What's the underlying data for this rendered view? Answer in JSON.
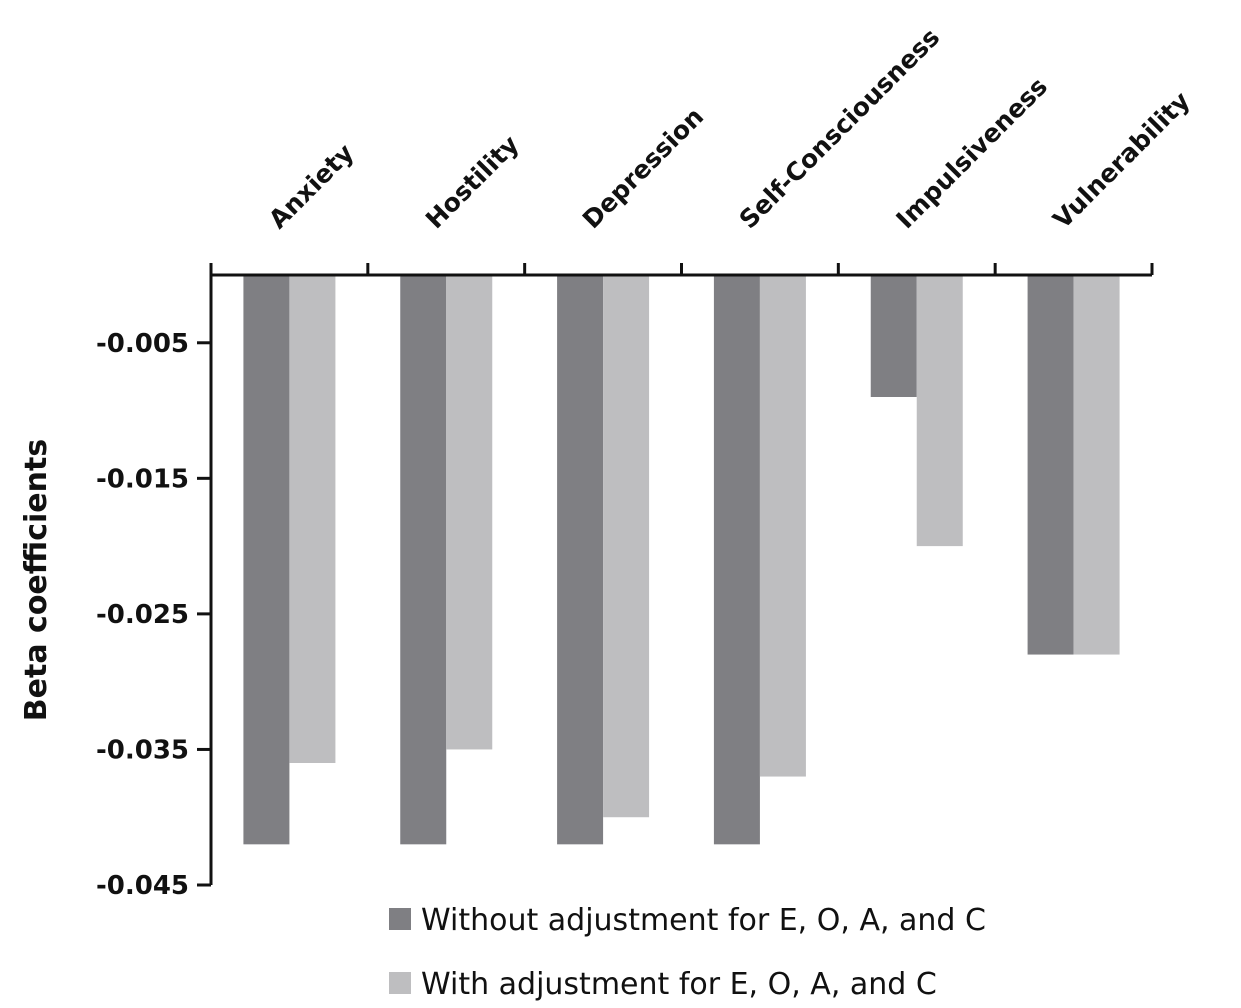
{
  "chart_data": {
    "type": "bar",
    "title": "",
    "xlabel": "",
    "ylabel": "Beta coefficients",
    "categories": [
      "Anxiety",
      "Hostility",
      "Depression",
      "Self-Consciousness",
      "Impulsiveness",
      "Vulnerability"
    ],
    "series": [
      {
        "name": "Without adjustment for E, O, A, and C",
        "color": "#7f7f83",
        "values": [
          -0.042,
          -0.042,
          -0.042,
          -0.042,
          -0.009,
          -0.028
        ]
      },
      {
        "name": "With adjustment for E, O, A, and C",
        "color": "#bebec0",
        "values": [
          -0.036,
          -0.035,
          -0.04,
          -0.037,
          -0.02,
          -0.028
        ]
      }
    ],
    "ylim": [
      -0.045,
      0
    ],
    "yticks": [
      "-0.005",
      "-0.015",
      "-0.025",
      "-0.035",
      "-0.045"
    ],
    "x_axis_position": "top",
    "legend_position": "bottom",
    "grid": false
  }
}
